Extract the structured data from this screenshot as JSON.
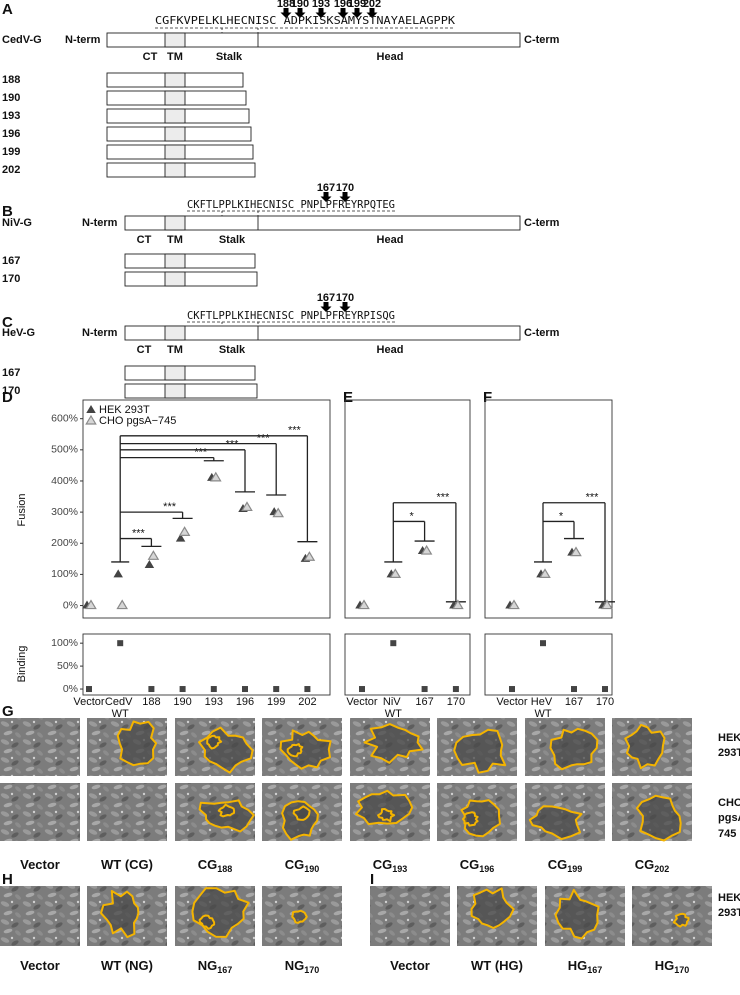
{
  "panels": [
    {
      "label": "A",
      "protein": "CedV-G",
      "nterm": "N-term",
      "cterm": "C-term",
      "sequence": "CGFKVPELKLHECNISC ADPKISKSAMYSTNAYAELAGPPK",
      "arrows": [
        "188",
        "190",
        "193",
        "196",
        "199",
        "202"
      ],
      "domains": [
        "CT",
        "TM",
        "Stalk",
        "Head"
      ],
      "constructs": [
        "188",
        "190",
        "193",
        "196",
        "199",
        "202"
      ]
    },
    {
      "label": "B",
      "protein": "NiV-G",
      "nterm": "N-term",
      "cterm": "C-term",
      "sequence": "CKFTLPPLKIHECNISC PNPLPFREYRPQTEG",
      "arrows": [
        "167",
        "170"
      ],
      "domains": [
        "CT",
        "TM",
        "Stalk",
        "Head"
      ],
      "constructs": [
        "167",
        "170"
      ]
    },
    {
      "label": "C",
      "protein": "HeV-G",
      "nterm": "N-term",
      "cterm": "C-term",
      "sequence": "CKFTLPPLKIHECNISC PNPLPFREYRPISQG",
      "arrows": [
        "167",
        "170"
      ],
      "domains": [
        "CT",
        "TM",
        "Stalk",
        "Head"
      ],
      "constructs": [
        "167",
        "170"
      ]
    }
  ],
  "chart_data": [
    {
      "type": "scatter",
      "label": "D",
      "categories": [
        "Vector",
        "CedV WT",
        "188",
        "190",
        "193",
        "196",
        "199",
        "202"
      ],
      "fusion": {
        "ylabel": "Fusion",
        "ylim": [
          -40,
          660
        ],
        "yticks": [
          {
            "value": 0,
            "label": "0%"
          },
          {
            "value": 100,
            "label": "100%"
          },
          {
            "value": 200,
            "label": "200%"
          },
          {
            "value": 300,
            "label": "300%"
          },
          {
            "value": 400,
            "label": "400%"
          },
          {
            "value": 500,
            "label": "500%"
          },
          {
            "value": 600,
            "label": "600%"
          }
        ],
        "legend": "top-left",
        "series": [
          {
            "name": "HEK 293T",
            "color": "#444444",
            "marker": "filled",
            "values": [
              0,
              100,
              130,
              215,
              410,
              310,
              300,
              150
            ]
          },
          {
            "name": "CHO pgsA−745",
            "color": "#8a8a8a",
            "marker": "open",
            "values": [
              0,
              0,
              158,
              235,
              410,
              315,
              295,
              155
            ]
          }
        ],
        "significance_labels": [
          null,
          null,
          "***",
          "***",
          "***",
          "***",
          "***",
          "***"
        ],
        "bracket_tops": [
          null,
          140,
          215,
          300,
          475,
          500,
          520,
          545
        ],
        "bracket_ends": [
          null,
          null,
          190,
          280,
          465,
          365,
          355,
          205
        ]
      },
      "binding": {
        "ylabel": "Binding",
        "ylim": [
          -13,
          120
        ],
        "yticks": [
          {
            "value": 0,
            "label": "0%"
          },
          {
            "value": 50,
            "label": "50%"
          },
          {
            "value": 100,
            "label": "100%"
          }
        ],
        "color": "#444444",
        "values": [
          0,
          100,
          0,
          0,
          0,
          0,
          0,
          0
        ]
      }
    },
    {
      "type": "scatter",
      "label": "E",
      "categories": [
        "Vector",
        "NiV WT",
        "167",
        "170"
      ],
      "fusion": {
        "ylim": [
          -40,
          660
        ],
        "series": [
          {
            "color": "#444444",
            "marker": "filled",
            "values": [
              0,
              100,
              175,
              0
            ]
          },
          {
            "color": "#8a8a8a",
            "marker": "open",
            "values": [
              0,
              100,
              175,
              0
            ]
          }
        ],
        "significance_labels": [
          null,
          null,
          "*",
          "***"
        ],
        "bracket_tops": [
          null,
          140,
          270,
          330
        ],
        "bracket_ends": [
          null,
          null,
          207,
          12
        ]
      },
      "binding": {
        "ylim": [
          -13,
          120
        ],
        "color": "#444444",
        "values": [
          0,
          100,
          0,
          0
        ]
      }
    },
    {
      "type": "scatter",
      "label": "F",
      "categories": [
        "Vector",
        "HeV WT",
        "167",
        "170"
      ],
      "fusion": {
        "ylim": [
          -40,
          660
        ],
        "series": [
          {
            "color": "#444444",
            "marker": "filled",
            "values": [
              0,
              100,
              170,
              0
            ]
          },
          {
            "color": "#8a8a8a",
            "marker": "open",
            "values": [
              0,
              100,
              170,
              0
            ]
          }
        ],
        "significance_labels": [
          null,
          null,
          "*",
          "***"
        ],
        "bracket_tops": [
          null,
          140,
          270,
          330
        ],
        "bracket_ends": [
          null,
          null,
          215,
          12
        ]
      },
      "binding": {
        "ylim": [
          -13,
          120
        ],
        "color": "#444444",
        "values": [
          0,
          100,
          0,
          0
        ]
      }
    }
  ],
  "micrographs": [
    {
      "label": "G",
      "rows": [
        [
          "HEK",
          "293T"
        ],
        [
          "CHO",
          "pgsA-",
          "745"
        ]
      ],
      "columns": [
        {
          "text": "Vector"
        },
        {
          "text": "WT (CG)"
        },
        {
          "text": "CG",
          "sub": "188"
        },
        {
          "text": "CG",
          "sub": "190"
        },
        {
          "text": "CG",
          "sub": "193"
        },
        {
          "text": "CG",
          "sub": "196"
        },
        {
          "text": "CG",
          "sub": "199"
        },
        {
          "text": "CG",
          "sub": "202"
        }
      ]
    },
    {
      "label": "H",
      "rows": [],
      "columns": [
        {
          "text": "Vector"
        },
        {
          "text": "WT (NG)"
        },
        {
          "text": "NG",
          "sub": "167"
        },
        {
          "text": "NG",
          "sub": "170"
        }
      ]
    },
    {
      "label": "I",
      "rows": [
        [
          "HEK",
          "293T"
        ]
      ],
      "columns": [
        {
          "text": "Vector"
        },
        {
          "text": "WT (HG)"
        },
        {
          "text": "HG",
          "sub": "167"
        },
        {
          "text": "HG",
          "sub": "170"
        }
      ]
    }
  ]
}
